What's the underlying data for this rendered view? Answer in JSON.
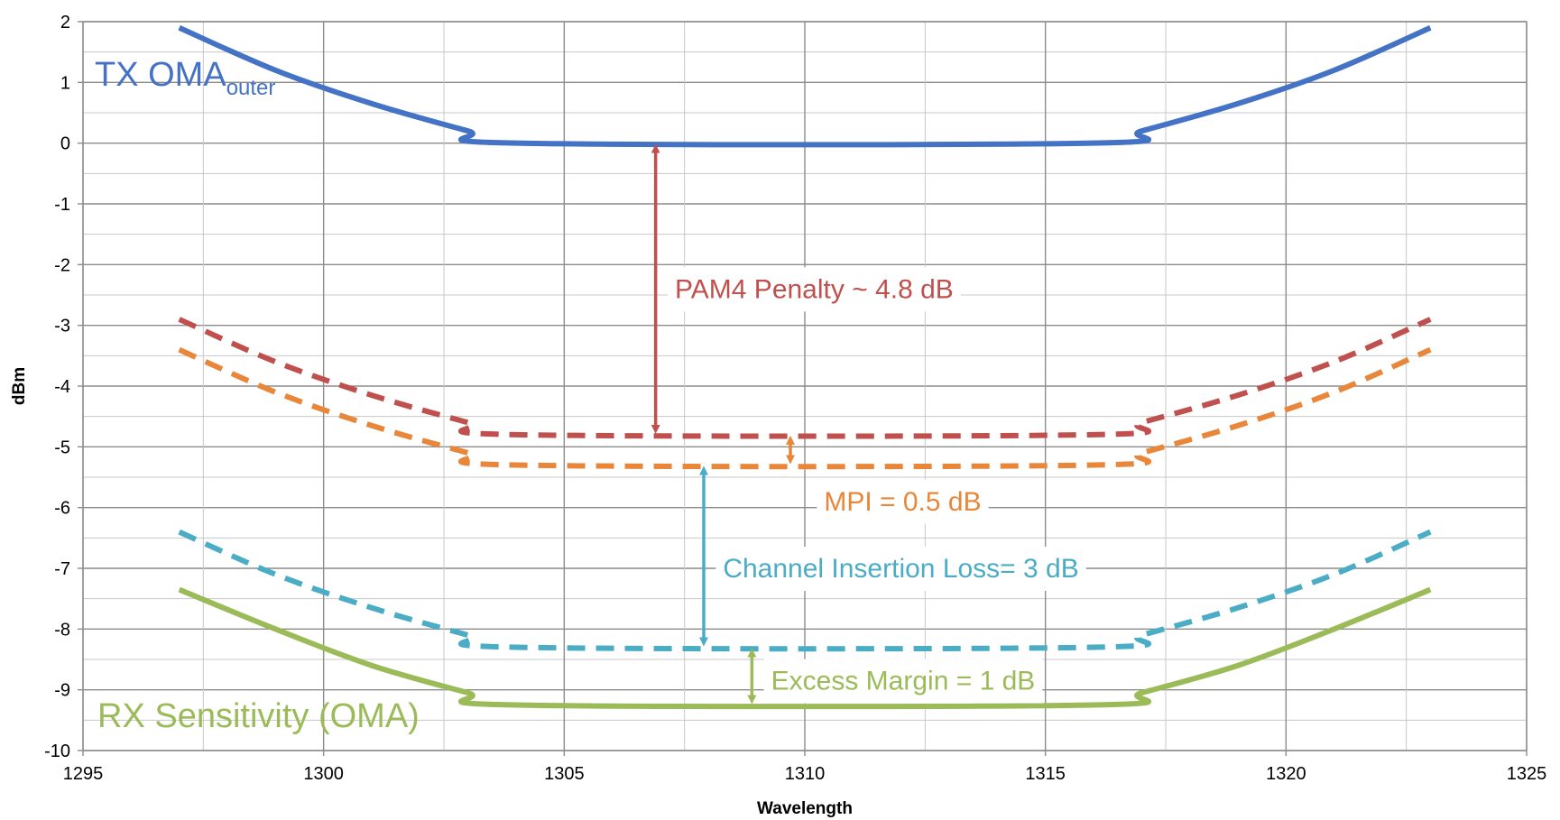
{
  "chart_data": {
    "type": "line",
    "title": "",
    "xlabel": "Wavelength",
    "ylabel": "dBm",
    "xlim": [
      1295,
      1325
    ],
    "ylim": [
      -10,
      2
    ],
    "x_ticks": [
      1295,
      1300,
      1305,
      1310,
      1315,
      1320,
      1325
    ],
    "x_tick_labels": [
      "1295",
      "1300",
      "1305",
      "1310",
      "1315",
      "1320",
      "1325"
    ],
    "y_ticks": [
      -10,
      -9,
      -8,
      -7,
      -6,
      -5,
      -4,
      -3,
      -2,
      -1,
      0,
      1,
      2
    ],
    "y_tick_labels": [
      "-10",
      "-9",
      "-8",
      "-7",
      "-6",
      "-5",
      "-4",
      "-3",
      "-2",
      "-1",
      "0",
      "1",
      "2"
    ],
    "grid": true,
    "legend": "none",
    "series": [
      {
        "id": "tx-oma",
        "label": "TX OMA",
        "label_sub": "outer",
        "color": "#4472C4",
        "style": "solid",
        "x": [
          1297,
          1299,
          1301,
          1303,
          1304,
          1316,
          1317,
          1319,
          1321,
          1323
        ],
        "y": [
          1.9,
          1.2,
          0.65,
          0.2,
          0.0,
          0.0,
          0.2,
          0.65,
          1.2,
          1.9
        ]
      },
      {
        "id": "pam4-level",
        "color": "#C0504D",
        "style": "dashed",
        "x": [
          1297,
          1299,
          1301,
          1303,
          1304,
          1316,
          1317,
          1319,
          1321,
          1323
        ],
        "y": [
          -2.9,
          -3.6,
          -4.15,
          -4.6,
          -4.8,
          -4.8,
          -4.6,
          -4.15,
          -3.6,
          -2.9
        ]
      },
      {
        "id": "mpi-level",
        "color": "#E8873A",
        "style": "dashed",
        "x": [
          1297,
          1299,
          1301,
          1303,
          1304,
          1316,
          1317,
          1319,
          1321,
          1323
        ],
        "y": [
          -3.4,
          -4.1,
          -4.65,
          -5.1,
          -5.3,
          -5.3,
          -5.1,
          -4.65,
          -4.1,
          -3.4
        ]
      },
      {
        "id": "cil-level",
        "color": "#4BACC6",
        "style": "dashed",
        "x": [
          1297,
          1299,
          1301,
          1303,
          1304,
          1316,
          1317,
          1319,
          1321,
          1323
        ],
        "y": [
          -6.4,
          -7.1,
          -7.65,
          -8.1,
          -8.3,
          -8.3,
          -8.1,
          -7.65,
          -7.1,
          -6.4
        ]
      },
      {
        "id": "rx-sensitivity",
        "label": "RX Sensitivity (OMA)",
        "color": "#9BBB59",
        "style": "solid",
        "x": [
          1297,
          1299,
          1301,
          1303,
          1304,
          1316,
          1317,
          1319,
          1321,
          1323
        ],
        "y": [
          -7.35,
          -8.0,
          -8.6,
          -9.05,
          -9.25,
          -9.25,
          -9.05,
          -8.6,
          -8.0,
          -7.35
        ]
      }
    ],
    "annotations": [
      {
        "id": "pam4-penalty",
        "text": "PAM4 Penalty ~ 4.8 dB",
        "color": "#C0504D",
        "arrow_x": 1306.9,
        "from_y": 0.0,
        "to_y": -4.8,
        "text_x": 1307.3,
        "text_y": -2.4
      },
      {
        "id": "mpi",
        "text": "MPI = 0.5 dB",
        "color": "#E8873A",
        "arrow_x": 1309.7,
        "from_y": -4.8,
        "to_y": -5.3,
        "text_x": 1310.4,
        "text_y": -5.9
      },
      {
        "id": "channel-insertion-loss",
        "text": "Channel Insertion Loss= 3 dB",
        "color": "#4BACC6",
        "arrow_x": 1307.9,
        "from_y": -5.3,
        "to_y": -8.3,
        "text_x": 1308.3,
        "text_y": -7.0
      },
      {
        "id": "excess-margin",
        "text": "Excess Margin = 1 dB",
        "color": "#9BBB59",
        "arrow_x": 1308.9,
        "from_y": -8.3,
        "to_y": -9.25,
        "text_x": 1309.3,
        "text_y": -8.85
      }
    ]
  }
}
